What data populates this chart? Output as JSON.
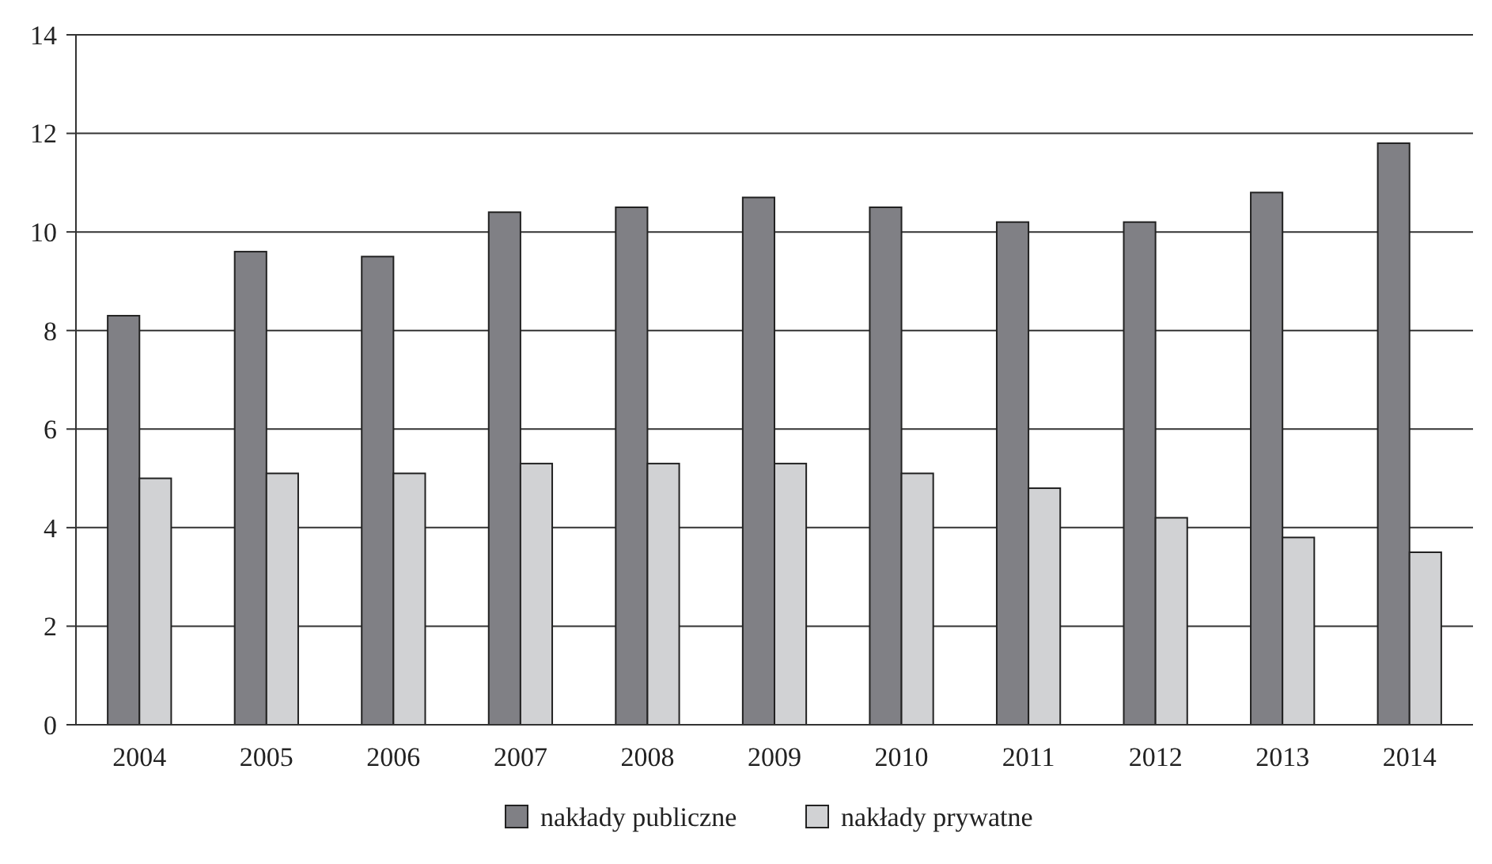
{
  "chart_data": {
    "type": "bar",
    "categories": [
      "2004",
      "2005",
      "2006",
      "2007",
      "2008",
      "2009",
      "2010",
      "2011",
      "2012",
      "2013",
      "2014"
    ],
    "series": [
      {
        "name": "nakłady publiczne",
        "color": "#808085",
        "values": [
          8.3,
          9.6,
          9.5,
          10.4,
          10.5,
          10.7,
          10.5,
          10.2,
          10.2,
          10.8,
          11.8
        ]
      },
      {
        "name": "nakłady prywatne",
        "color": "#d1d2d4",
        "values": [
          5.0,
          5.1,
          5.1,
          5.3,
          5.3,
          5.3,
          5.1,
          4.8,
          4.2,
          3.8,
          3.5
        ]
      }
    ],
    "ylim": [
      0,
      14
    ],
    "yticks": [
      0,
      2,
      4,
      6,
      8,
      10,
      12,
      14
    ],
    "grid": "y",
    "legend": "bottom"
  }
}
